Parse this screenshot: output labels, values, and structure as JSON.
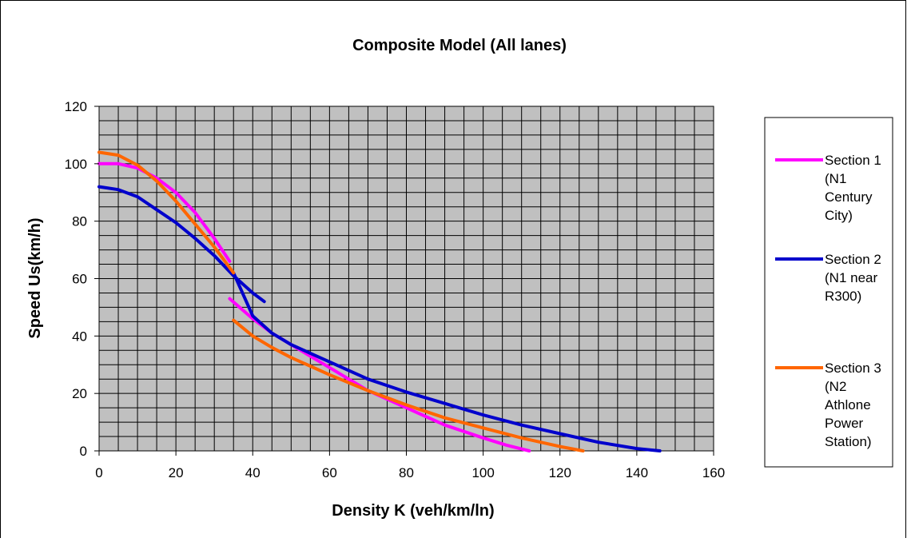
{
  "chart_data": {
    "type": "line",
    "title": "Composite Model (All lanes)",
    "xlabel": "Density K (veh/km/ln)",
    "ylabel": "Speed Us(km/h)",
    "xlim": [
      0,
      160
    ],
    "ylim": [
      0,
      120
    ],
    "x_ticks": [
      0,
      20,
      40,
      60,
      80,
      100,
      120,
      140,
      160
    ],
    "y_ticks": [
      0,
      20,
      40,
      60,
      80,
      100,
      120
    ],
    "x_tick_labels": [
      "0",
      "20",
      "40",
      "60",
      "80",
      "100",
      "120",
      "140",
      "160"
    ],
    "y_tick_labels": [
      "0",
      "20",
      "40",
      "60",
      "80",
      "100",
      "120"
    ],
    "grid": true,
    "legend_position": "right",
    "plot_background": "#c0c0c0",
    "series": [
      {
        "name": "Section 1 (N1 Century City)",
        "legend_lines": [
          "Section 1",
          "(N1",
          "Century",
          "City)"
        ],
        "color": "#ff00ff",
        "segments": [
          [
            [
              0,
              100
            ],
            [
              5,
              100
            ],
            [
              10,
              98.5
            ],
            [
              15,
              95
            ],
            [
              20,
              90
            ],
            [
              25,
              83
            ],
            [
              30,
              74
            ],
            [
              34,
              66
            ]
          ],
          [
            [
              34,
              53
            ],
            [
              40,
              46
            ],
            [
              45,
              41
            ],
            [
              50,
              37
            ],
            [
              55,
              33
            ],
            [
              60,
              29
            ],
            [
              70,
              21
            ],
            [
              80,
              15
            ],
            [
              90,
              9
            ],
            [
              100,
              4.5
            ],
            [
              106,
              2
            ],
            [
              112,
              0
            ]
          ]
        ]
      },
      {
        "name": "Section 2 (N1 near R300)",
        "legend_lines": [
          "Section 2",
          "(N1 near",
          "R300)"
        ],
        "color": "#0000cc",
        "segments": [
          [
            [
              0,
              92
            ],
            [
              5,
              91
            ],
            [
              10,
              88.5
            ],
            [
              15,
              84
            ],
            [
              20,
              79.5
            ],
            [
              25,
              74
            ],
            [
              30,
              68
            ],
            [
              35,
              61
            ],
            [
              40,
              55
            ],
            [
              43,
              52
            ]
          ],
          [
            [
              35,
              62
            ],
            [
              40,
              47
            ],
            [
              45,
              41
            ],
            [
              50,
              37
            ],
            [
              55,
              34
            ],
            [
              60,
              31
            ],
            [
              70,
              25
            ],
            [
              80,
              20.5
            ],
            [
              90,
              16.5
            ],
            [
              100,
              12.5
            ],
            [
              110,
              9
            ],
            [
              120,
              6
            ],
            [
              130,
              3
            ],
            [
              140,
              0.8
            ],
            [
              146,
              0
            ]
          ]
        ]
      },
      {
        "name": "Section 3 (N2 Athlone Power Station)",
        "legend_lines": [
          "Section 3",
          "(N2",
          "Athlone",
          "Power",
          "Station)"
        ],
        "color": "#ff6600",
        "segments": [
          [
            [
              0,
              104
            ],
            [
              5,
              103
            ],
            [
              10,
              99.5
            ],
            [
              15,
              94
            ],
            [
              20,
              87
            ],
            [
              25,
              79
            ],
            [
              30,
              71
            ],
            [
              35,
              62
            ]
          ],
          [
            [
              35,
              45.5
            ],
            [
              40,
              40
            ],
            [
              45,
              36
            ],
            [
              50,
              32.5
            ],
            [
              55,
              29.5
            ],
            [
              60,
              26.5
            ],
            [
              70,
              21
            ],
            [
              80,
              16
            ],
            [
              90,
              11.5
            ],
            [
              100,
              8
            ],
            [
              110,
              4.5
            ],
            [
              120,
              1.5
            ],
            [
              126,
              0
            ]
          ]
        ]
      }
    ]
  }
}
